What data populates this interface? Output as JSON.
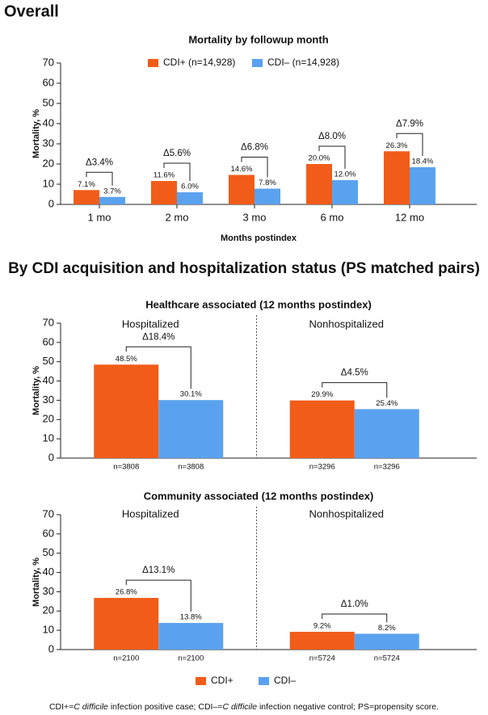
{
  "headings": [
    "Overall",
    "By CDI acquisition and hospitalization status (PS matched pairs)"
  ],
  "chart_data": [
    {
      "type": "bar",
      "title": "Mortality by followup month",
      "y_label": "Mortality, %",
      "x_label": "Months postindex",
      "categories": [
        "1 mo",
        "2 mo",
        "3 mo",
        "6 mo",
        "12 mo"
      ],
      "series": [
        {
          "name": "CDI+ (n=14,928)",
          "color": "#f25c19",
          "values": [
            7.1,
            11.6,
            14.6,
            20.0,
            26.3
          ],
          "value_labels": [
            "7.1%",
            "11.6%",
            "14.6%",
            "20.0%",
            "26.3%"
          ]
        },
        {
          "name": "CDI– (n=14,928)",
          "color": "#5aa2ef",
          "values": [
            3.7,
            6.0,
            7.8,
            12.0,
            18.4
          ],
          "value_labels": [
            "3.7%",
            "6.0%",
            "7.8%",
            "12.0%",
            "18.4%"
          ]
        }
      ],
      "annotations": [
        "Δ3.4%",
        "Δ5.6%",
        "Δ6.8%",
        "Δ8.0%",
        "Δ7.9%"
      ],
      "ylim": [
        0,
        70
      ],
      "yticks": [
        0,
        10,
        20,
        30,
        40,
        50,
        60,
        70
      ],
      "legend": "top"
    },
    {
      "type": "grouped-bar",
      "title": "Healthcare associated (12 months postindex)",
      "y_label": "Mortality, %",
      "categories": [
        "Hospitalized",
        "Nonhospitalized"
      ],
      "series": [
        {
          "color": "#f25c19",
          "values": [
            48.5,
            29.9
          ],
          "value_labels": [
            "48.5%",
            "29.9%"
          ],
          "sample_labels": [
            "n=3808",
            "n=3296"
          ]
        },
        {
          "color": "#5aa2ef",
          "values": [
            30.1,
            25.4
          ],
          "value_labels": [
            "30.1%",
            "25.4%"
          ],
          "sample_labels": [
            "n=3808",
            "n=3296"
          ]
        }
      ],
      "annotations": [
        "Δ18.4%",
        "Δ4.5%"
      ],
      "ylim": [
        0,
        70
      ],
      "yticks": [
        0,
        10,
        20,
        30,
        40,
        50,
        60,
        70
      ]
    },
    {
      "type": "grouped-bar",
      "title": "Community associated (12 months postindex)",
      "y_label": "Mortality, %",
      "categories": [
        "Hospitalized",
        "Nonhospitalized"
      ],
      "series": [
        {
          "name": "CDI+",
          "color": "#f25c19",
          "values": [
            26.8,
            9.2
          ],
          "value_labels": [
            "26.8%",
            "9.2%"
          ],
          "sample_labels": [
            "n=2100",
            "n=5724"
          ]
        },
        {
          "name": "CDI–",
          "color": "#5aa2ef",
          "values": [
            13.8,
            8.2
          ],
          "value_labels": [
            "13.8%",
            "8.2%"
          ],
          "sample_labels": [
            "n=2100",
            "n=5724"
          ]
        }
      ],
      "annotations": [
        "Δ13.1%",
        "Δ1.0%"
      ],
      "ylim": [
        0,
        70
      ],
      "yticks": [
        0,
        10,
        20,
        30,
        40,
        50,
        60,
        70
      ],
      "legend": "bottom"
    }
  ],
  "footnote": [
    "CDI+=",
    "C difficile",
    " infection positive case; CDI–=",
    "C difficile",
    " infection negative control; PS=propensity score."
  ]
}
